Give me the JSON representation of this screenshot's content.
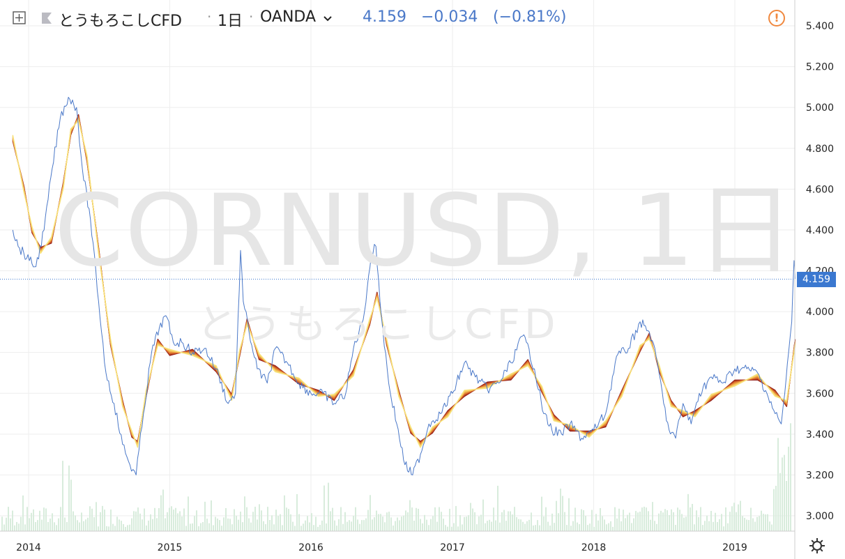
{
  "header": {
    "symbol_name": "とうもろこしCFD",
    "interval": "1日",
    "exchange": "OANDA",
    "last": "4.159",
    "change": "−0.034",
    "change_pct": "(−0.81%)"
  },
  "watermark": {
    "line1": "CORNUSD, 1日",
    "line2": "とうもろこしCFD"
  },
  "price_tag": "4.159",
  "colors": {
    "price_line": "#4a78c8",
    "ma_ribbon_dark": "#8b1a1a",
    "ma_ribbon_light": "#f7e27a",
    "volume": "#d8ecdc",
    "grid": "#eeeeee",
    "last_price": "#3b78d0",
    "alert": "#f0883e"
  },
  "icons": [
    "crosshair-icon",
    "symbol-flag-icon",
    "chevron-down-icon",
    "alert-icon",
    "settings-gear-icon"
  ],
  "chart_data": {
    "type": "line",
    "ylim": [
      2.94,
      5.5
    ],
    "y_ticks": [
      "3.000",
      "3.200",
      "3.400",
      "3.600",
      "3.800",
      "4.000",
      "4.200",
      "4.400",
      "4.600",
      "4.800",
      "5.000",
      "5.200",
      "5.400"
    ],
    "x_ticks": [
      "2014",
      "2015",
      "2016",
      "2017",
      "2018",
      "2019"
    ],
    "last_value": 4.159,
    "series": [
      {
        "kind": "price",
        "x": [
          "2013-11-21",
          "2013-12-05",
          "2014-01-03",
          "2014-01-20",
          "2014-02-10",
          "2014-03-03",
          "2014-03-24",
          "2014-04-14",
          "2014-05-05",
          "2014-05-20",
          "2014-06-10",
          "2014-07-01",
          "2014-07-20",
          "2014-08-10",
          "2014-09-01",
          "2014-09-20",
          "2014-10-06",
          "2014-10-25",
          "2014-11-15",
          "2014-12-05",
          "2014-12-22",
          "2015-01-10",
          "2015-02-01",
          "2015-03-01",
          "2015-04-01",
          "2015-05-01",
          "2015-06-01",
          "2015-06-20",
          "2015-07-03",
          "2015-07-10",
          "2015-07-25",
          "2015-08-15",
          "2015-09-10",
          "2015-10-01",
          "2015-11-01",
          "2015-12-01",
          "2016-01-01",
          "2016-02-01",
          "2016-03-01",
          "2016-03-31",
          "2016-04-20",
          "2016-05-15",
          "2016-06-05",
          "2016-06-17",
          "2016-07-01",
          "2016-07-20",
          "2016-08-10",
          "2016-08-31",
          "2016-09-20",
          "2016-10-10",
          "2016-11-01",
          "2016-12-01",
          "2017-01-01",
          "2017-02-01",
          "2017-03-01",
          "2017-04-01",
          "2017-05-01",
          "2017-06-01",
          "2017-07-01",
          "2017-07-11",
          "2017-08-01",
          "2017-08-25",
          "2017-09-15",
          "2017-10-10",
          "2017-11-01",
          "2017-12-01",
          "2018-01-01",
          "2018-02-01",
          "2018-03-01",
          "2018-04-01",
          "2018-05-01",
          "2018-05-25",
          "2018-06-15",
          "2018-07-01",
          "2018-07-15",
          "2018-08-01",
          "2018-08-20",
          "2018-09-10",
          "2018-10-01",
          "2018-11-01",
          "2018-12-01",
          "2019-01-01",
          "2019-02-01",
          "2019-03-01",
          "2019-03-25",
          "2019-04-15",
          "2019-05-01",
          "2019-05-10",
          "2019-05-20",
          "2019-05-28",
          "2019-06-03",
          "2019-06-06"
        ],
        "values": [
          4.4,
          4.32,
          4.25,
          4.22,
          4.4,
          4.7,
          4.95,
          5.05,
          5.0,
          4.7,
          4.45,
          4.05,
          3.7,
          3.55,
          3.35,
          3.25,
          3.2,
          3.5,
          3.8,
          3.92,
          3.98,
          3.85,
          3.85,
          3.8,
          3.82,
          3.72,
          3.55,
          3.6,
          4.3,
          4.05,
          3.9,
          3.72,
          3.65,
          3.82,
          3.75,
          3.65,
          3.6,
          3.6,
          3.55,
          3.6,
          3.82,
          3.96,
          4.28,
          4.32,
          3.98,
          3.65,
          3.45,
          3.25,
          3.2,
          3.3,
          3.45,
          3.5,
          3.6,
          3.75,
          3.68,
          3.62,
          3.65,
          3.75,
          3.88,
          3.85,
          3.72,
          3.5,
          3.42,
          3.4,
          3.45,
          3.38,
          3.42,
          3.5,
          3.78,
          3.82,
          3.95,
          3.9,
          3.75,
          3.55,
          3.42,
          3.38,
          3.55,
          3.45,
          3.6,
          3.68,
          3.65,
          3.72,
          3.72,
          3.7,
          3.6,
          3.5,
          3.45,
          3.6,
          3.8,
          3.95,
          4.25,
          4.16
        ]
      },
      {
        "kind": "moving-average-ribbon",
        "x": [
          "2013-11-21",
          "2013-12-20",
          "2014-01-10",
          "2014-02-01",
          "2014-03-01",
          "2014-04-01",
          "2014-04-20",
          "2014-05-10",
          "2014-06-01",
          "2014-07-01",
          "2014-08-01",
          "2014-09-01",
          "2014-09-25",
          "2014-10-10",
          "2014-11-01",
          "2014-12-01",
          "2015-01-01",
          "2015-03-01",
          "2015-05-01",
          "2015-06-10",
          "2015-07-01",
          "2015-07-20",
          "2015-08-20",
          "2015-10-01",
          "2015-12-01",
          "2016-01-20",
          "2016-03-01",
          "2016-04-20",
          "2016-06-01",
          "2016-06-20",
          "2016-07-15",
          "2016-08-15",
          "2016-09-15",
          "2016-10-10",
          "2016-11-10",
          "2016-12-20",
          "2017-02-01",
          "2017-04-01",
          "2017-06-01",
          "2017-07-15",
          "2017-08-20",
          "2017-09-20",
          "2017-11-01",
          "2017-12-20",
          "2018-02-01",
          "2018-03-15",
          "2018-05-01",
          "2018-05-25",
          "2018-06-20",
          "2018-07-20",
          "2018-08-20",
          "2018-09-20",
          "2018-11-01",
          "2019-01-01",
          "2019-03-01",
          "2019-04-15",
          "2019-05-15",
          "2019-06-06"
        ],
        "values": [
          4.85,
          4.6,
          4.4,
          4.3,
          4.35,
          4.62,
          4.88,
          4.95,
          4.75,
          4.3,
          3.85,
          3.55,
          3.4,
          3.35,
          3.6,
          3.85,
          3.8,
          3.8,
          3.72,
          3.58,
          3.8,
          3.95,
          3.78,
          3.72,
          3.66,
          3.6,
          3.58,
          3.7,
          3.95,
          4.08,
          3.85,
          3.6,
          3.42,
          3.35,
          3.42,
          3.5,
          3.6,
          3.64,
          3.68,
          3.75,
          3.62,
          3.48,
          3.43,
          3.4,
          3.45,
          3.6,
          3.82,
          3.88,
          3.72,
          3.55,
          3.5,
          3.5,
          3.58,
          3.65,
          3.68,
          3.6,
          3.55,
          3.85
        ]
      }
    ],
    "volume_note": "volume histogram along bottom"
  }
}
